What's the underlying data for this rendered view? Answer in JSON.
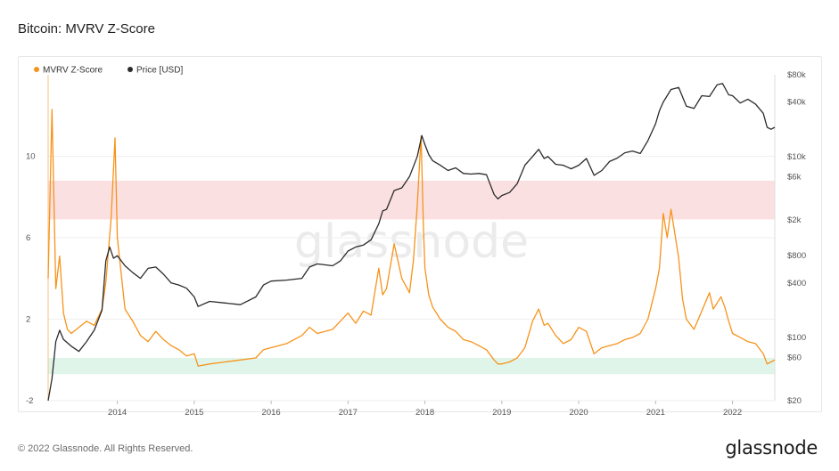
{
  "title": "Bitcoin: MVRV Z-Score",
  "footer": {
    "copyright": "© 2022 Glassnode. All Rights Reserved.",
    "logo": "glassnode"
  },
  "watermark": "glassnode",
  "colors": {
    "zscore": "#f7931a",
    "price": "#2b2b2b",
    "red_band": "#fadadd",
    "green_band": "#daf3e6",
    "grid": "#efefef"
  },
  "chart_data": {
    "type": "line",
    "legend": [
      {
        "name": "MVRV Z-Score",
        "color": "#f7931a"
      },
      {
        "name": "Price [USD]",
        "color": "#2b2b2b"
      }
    ],
    "legend_position": "top-left",
    "grid": true,
    "x_ticks": [
      "2014",
      "2015",
      "2016",
      "2017",
      "2018",
      "2019",
      "2020",
      "2021",
      "2022"
    ],
    "x_range": [
      2013.1,
      2022.55
    ],
    "y_left": {
      "ticks": [
        -2,
        2,
        6,
        10
      ],
      "range": [
        -2,
        14
      ]
    },
    "y_right": {
      "scale": "log",
      "ticks": [
        "$20",
        "$60",
        "$100",
        "$400",
        "$800",
        "$2k",
        "$6k",
        "$10k",
        "$40k",
        "$80k"
      ],
      "tick_values": [
        20,
        60,
        100,
        400,
        800,
        2000,
        6000,
        10000,
        40000,
        80000
      ],
      "range": [
        20,
        80000
      ]
    },
    "bands": [
      {
        "axis": "left",
        "from": 6.9,
        "to": 8.8,
        "color": "#fadadd"
      },
      {
        "axis": "left",
        "from": -0.7,
        "to": 0.1,
        "color": "#daf3e6"
      }
    ],
    "series": [
      {
        "name": "MVRV Z-Score",
        "axis": "left",
        "x": [
          2013.1,
          2013.15,
          2013.2,
          2013.25,
          2013.3,
          2013.35,
          2013.4,
          2013.5,
          2013.6,
          2013.7,
          2013.8,
          2013.85,
          2013.92,
          2013.97,
          2014.0,
          2014.1,
          2014.2,
          2014.3,
          2014.4,
          2014.5,
          2014.6,
          2014.7,
          2014.8,
          2014.9,
          2015.0,
          2015.05,
          2015.2,
          2015.4,
          2015.6,
          2015.8,
          2015.9,
          2016.0,
          2016.2,
          2016.4,
          2016.5,
          2016.6,
          2016.8,
          2016.9,
          2017.0,
          2017.1,
          2017.2,
          2017.3,
          2017.4,
          2017.45,
          2017.5,
          2017.6,
          2017.7,
          2017.8,
          2017.85,
          2017.9,
          2017.95,
          2017.98,
          2018.0,
          2018.05,
          2018.1,
          2018.2,
          2018.3,
          2018.4,
          2018.5,
          2018.6,
          2018.7,
          2018.8,
          2018.9,
          2018.95,
          2019.0,
          2019.1,
          2019.2,
          2019.3,
          2019.4,
          2019.48,
          2019.55,
          2019.6,
          2019.7,
          2019.8,
          2019.9,
          2020.0,
          2020.1,
          2020.2,
          2020.3,
          2020.4,
          2020.5,
          2020.6,
          2020.7,
          2020.8,
          2020.9,
          2021.0,
          2021.05,
          2021.1,
          2021.15,
          2021.2,
          2021.3,
          2021.35,
          2021.4,
          2021.5,
          2021.6,
          2021.7,
          2021.75,
          2021.8,
          2021.85,
          2021.9,
          2021.95,
          2022.0,
          2022.1,
          2022.2,
          2022.3,
          2022.4,
          2022.45,
          2022.5,
          2022.55
        ],
        "values": [
          4.0,
          12.3,
          3.5,
          5.1,
          2.3,
          1.5,
          1.3,
          1.6,
          1.9,
          1.7,
          2.5,
          3.8,
          7.0,
          10.9,
          6.0,
          2.5,
          1.9,
          1.2,
          0.9,
          1.4,
          1.0,
          0.7,
          0.5,
          0.2,
          0.3,
          -0.3,
          -0.2,
          -0.1,
          0.0,
          0.1,
          0.5,
          0.6,
          0.8,
          1.2,
          1.6,
          1.3,
          1.5,
          1.9,
          2.3,
          1.8,
          2.4,
          2.2,
          4.5,
          3.2,
          3.5,
          5.7,
          4.0,
          3.3,
          4.9,
          7.6,
          11.0,
          6.5,
          4.5,
          3.2,
          2.6,
          2.0,
          1.6,
          1.4,
          1.0,
          0.9,
          0.7,
          0.5,
          0.0,
          -0.2,
          -0.2,
          -0.1,
          0.1,
          0.6,
          1.9,
          2.5,
          1.7,
          1.8,
          1.2,
          0.8,
          1.0,
          1.6,
          1.4,
          0.3,
          0.6,
          0.7,
          0.8,
          1.0,
          1.1,
          1.3,
          2.0,
          3.5,
          4.5,
          7.2,
          6.0,
          7.4,
          5.0,
          3.0,
          2.0,
          1.5,
          2.4,
          3.3,
          2.5,
          2.8,
          3.1,
          2.6,
          1.9,
          1.3,
          1.1,
          0.9,
          0.8,
          0.3,
          -0.2,
          -0.1,
          0.0
        ]
      },
      {
        "name": "Price [USD]",
        "axis": "right",
        "x": [
          2013.1,
          2013.15,
          2013.2,
          2013.25,
          2013.3,
          2013.4,
          2013.5,
          2013.6,
          2013.7,
          2013.8,
          2013.85,
          2013.9,
          2013.95,
          2014.0,
          2014.1,
          2014.2,
          2014.3,
          2014.4,
          2014.5,
          2014.6,
          2014.7,
          2014.8,
          2014.9,
          2015.0,
          2015.05,
          2015.2,
          2015.4,
          2015.6,
          2015.8,
          2015.9,
          2016.0,
          2016.2,
          2016.4,
          2016.5,
          2016.6,
          2016.8,
          2016.9,
          2017.0,
          2017.1,
          2017.2,
          2017.3,
          2017.4,
          2017.45,
          2017.5,
          2017.6,
          2017.7,
          2017.8,
          2017.9,
          2017.96,
          2018.0,
          2018.05,
          2018.1,
          2018.2,
          2018.3,
          2018.4,
          2018.5,
          2018.6,
          2018.7,
          2018.8,
          2018.9,
          2018.95,
          2019.0,
          2019.1,
          2019.2,
          2019.3,
          2019.4,
          2019.48,
          2019.55,
          2019.6,
          2019.7,
          2019.8,
          2019.9,
          2020.0,
          2020.1,
          2020.2,
          2020.3,
          2020.4,
          2020.5,
          2020.6,
          2020.7,
          2020.8,
          2020.9,
          2021.0,
          2021.05,
          2021.1,
          2021.2,
          2021.3,
          2021.4,
          2021.5,
          2021.6,
          2021.7,
          2021.8,
          2021.87,
          2021.95,
          2022.0,
          2022.1,
          2022.2,
          2022.3,
          2022.4,
          2022.45,
          2022.5,
          2022.55
        ],
        "values": [
          20,
          35,
          90,
          120,
          95,
          80,
          70,
          90,
          120,
          200,
          700,
          1000,
          750,
          800,
          620,
          520,
          450,
          580,
          600,
          500,
          400,
          380,
          350,
          280,
          220,
          250,
          240,
          230,
          280,
          380,
          420,
          430,
          450,
          600,
          650,
          620,
          700,
          900,
          1000,
          1050,
          1200,
          1800,
          2500,
          2600,
          4200,
          4500,
          6000,
          10000,
          17000,
          13500,
          10500,
          9000,
          8000,
          7000,
          7500,
          6500,
          6400,
          6500,
          6300,
          3800,
          3400,
          3700,
          4000,
          5000,
          8000,
          10000,
          12000,
          9500,
          10000,
          8200,
          8000,
          7300,
          8000,
          9500,
          6200,
          7000,
          8800,
          9600,
          11000,
          11500,
          10800,
          15000,
          23000,
          32000,
          40000,
          55000,
          58000,
          36000,
          34000,
          47000,
          46000,
          62000,
          64000,
          48000,
          47000,
          39000,
          43000,
          38000,
          30000,
          21000,
          20000,
          21000
        ]
      }
    ]
  }
}
